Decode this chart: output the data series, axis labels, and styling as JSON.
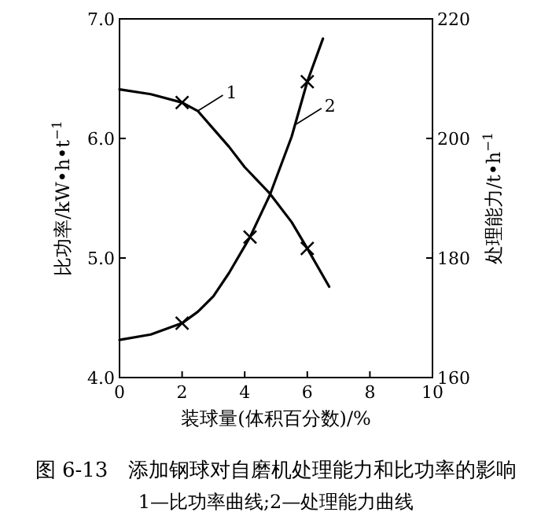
{
  "chart_data": {
    "type": "line",
    "title": "图 6-13　添加钢球对自磨机处理能力和比功率的影响",
    "subtitle": "1—比功率曲线;2—处理能力曲线",
    "xlabel": "装球量(体积百分数)/%",
    "ylabel": "比功率/kW•h•t$^{−1}$",
    "y2label": "处理能力/t•h$^{−1}$",
    "xlim": [
      0,
      10
    ],
    "xticks": [
      0,
      2,
      4,
      6,
      8,
      10
    ],
    "ylim": [
      4,
      7
    ],
    "yticks": [
      {
        "value": 4,
        "label": "4.0"
      },
      {
        "value": 5,
        "label": "5.0"
      },
      {
        "value": 6,
        "label": "6.0"
      },
      {
        "value": 7,
        "label": "7.0"
      }
    ],
    "y2lim": [
      160,
      220
    ],
    "y2ticks": [
      160,
      180,
      200,
      220
    ],
    "annotations": [
      {
        "text": "1",
        "x": 2.5,
        "y": 6.23
      },
      {
        "text": "2",
        "x": 5.65,
        "y": 6.12
      }
    ],
    "series": [
      {
        "type": "line",
        "color": "#000000",
        "x": [
          0,
          1,
          2,
          2.5,
          3,
          3.5,
          4,
          4.8,
          5.5,
          6,
          6.7
        ],
        "values": [
          6.41,
          6.37,
          6.3,
          6.23,
          6.08,
          5.93,
          5.76,
          5.54,
          5.3,
          5.08,
          4.76
        ]
      },
      {
        "type": "line",
        "axis": "y2",
        "color": "#000000",
        "x": [
          0,
          1,
          2,
          2.5,
          3,
          3.5,
          4.17,
          4.8,
          5.5,
          6,
          6.5
        ],
        "values": [
          166.3,
          167.2,
          169.1,
          171,
          173.6,
          177.5,
          183.5,
          190.5,
          200.3,
          209.5,
          216.7
        ]
      },
      {
        "type": "scatter",
        "marker": "cross",
        "color": "#000000",
        "x": [
          2,
          6
        ],
        "values": [
          6.3,
          5.08
        ]
      },
      {
        "type": "scatter",
        "marker": "cross",
        "axis": "y2",
        "color": "#000000",
        "x": [
          2,
          4.17,
          6
        ],
        "values": [
          169.1,
          183.5,
          209.5
        ]
      }
    ]
  }
}
